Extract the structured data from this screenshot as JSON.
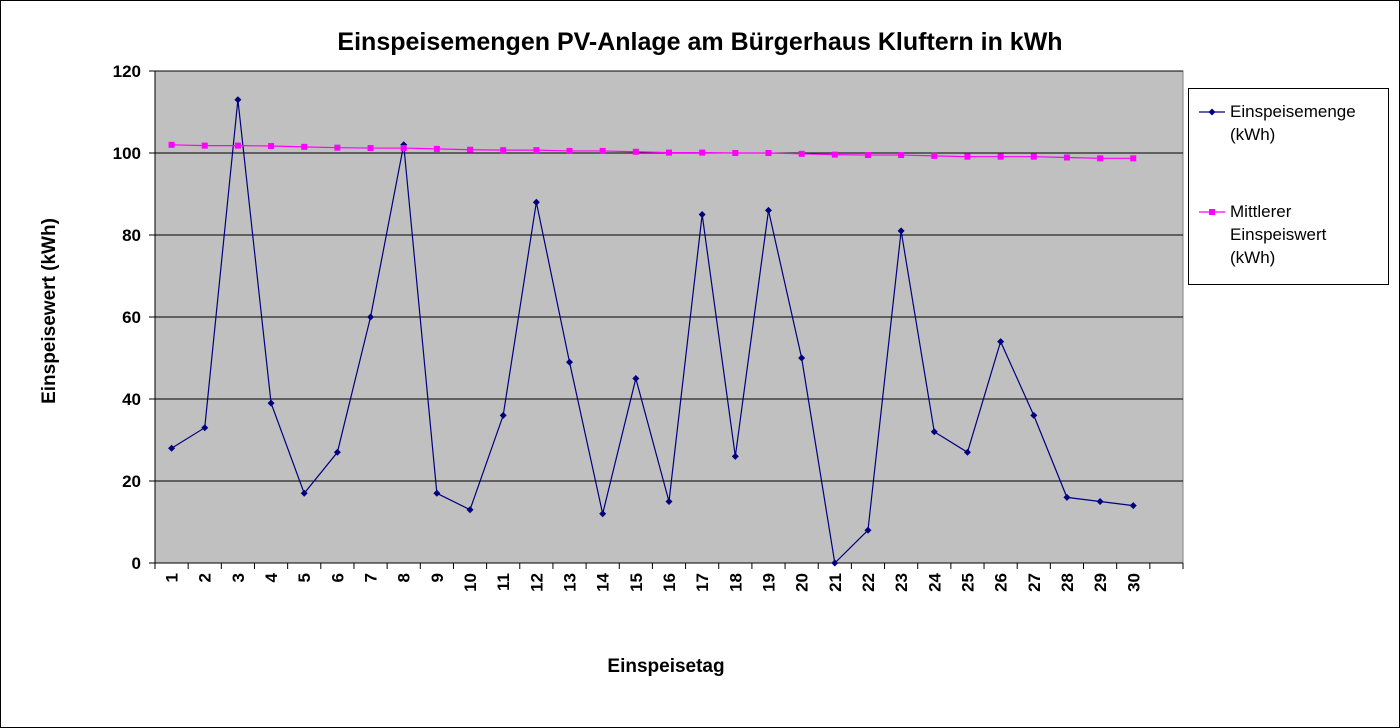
{
  "chart_data": {
    "type": "line",
    "title": "Einspeisemengen PV-Anlage am Bürgerhaus Kluftern in kWh",
    "xlabel": "Einspeisetag",
    "ylabel": "Einspeisewert (kWh)",
    "ylim": [
      0,
      120
    ],
    "yticks": [
      "0",
      "20",
      "40",
      "60",
      "80",
      "100",
      "120"
    ],
    "categories": [
      "1",
      "2",
      "3",
      "4",
      "5",
      "6",
      "7",
      "8",
      "9",
      "10",
      "11",
      "12",
      "13",
      "14",
      "15",
      "16",
      "17",
      "18",
      "19",
      "20",
      "21",
      "22",
      "23",
      "24",
      "25",
      "26",
      "27",
      "28",
      "29",
      "30"
    ],
    "grid": true,
    "legend_position": "right",
    "plot_background": "#C0C0C0",
    "series": [
      {
        "name": "Einspeisemenge (kWh)",
        "legend_lines": [
          "Einspeisemenge",
          "(kWh)"
        ],
        "color": "#000080",
        "marker": "diamond",
        "values": [
          28,
          33,
          113,
          39,
          17,
          27,
          60,
          102,
          17,
          13,
          36,
          88,
          49,
          12,
          45,
          15,
          85,
          26,
          86,
          50,
          0,
          8,
          81,
          32,
          27,
          54,
          36,
          16,
          15,
          14
        ]
      },
      {
        "name": "Mittlerer Einspeiswert (kWh)",
        "legend_lines": [
          "Mittlerer",
          "Einspeiswert",
          "(kWh)"
        ],
        "color": "#FF00FF",
        "marker": "square",
        "values": [
          102,
          101.8,
          101.8,
          101.7,
          101.5,
          101.3,
          101.2,
          101.2,
          101,
          100.8,
          100.7,
          100.7,
          100.5,
          100.5,
          100.3,
          100.1,
          100.1,
          100,
          100,
          99.8,
          99.6,
          99.5,
          99.5,
          99.3,
          99.1,
          99.1,
          99.1,
          98.9,
          98.7,
          98.7
        ]
      }
    ]
  }
}
